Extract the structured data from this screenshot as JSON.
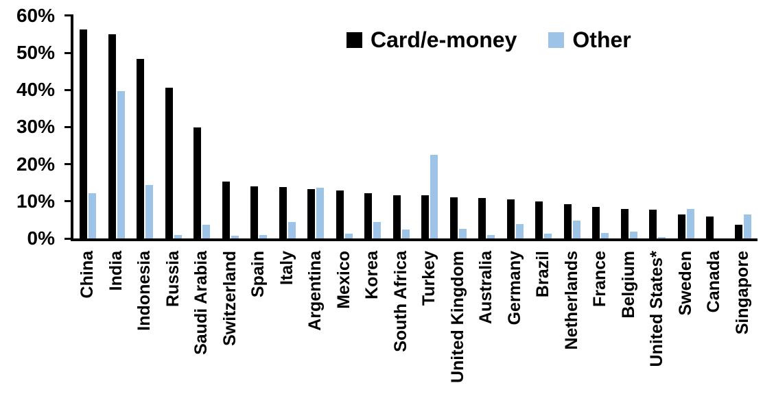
{
  "chart_data": {
    "type": "bar",
    "title": "",
    "xlabel": "",
    "ylabel": "",
    "ylim": [
      0,
      60
    ],
    "y_tick_labels": [
      "0%",
      "10%",
      "20%",
      "30%",
      "40%",
      "50%",
      "60%"
    ],
    "grid": false,
    "legend_position": "top-center",
    "categories": [
      "China",
      "India",
      "Indonesia",
      "Russia",
      "Saudi Arabia",
      "Switzerland",
      "Spain",
      "Italy",
      "Argentina",
      "Mexico",
      "Korea",
      "South Africa",
      "Turkey",
      "United Kingdom",
      "Australia",
      "Germany",
      "Brazil",
      "Netherlands",
      "France",
      "Belgium",
      "United States*",
      "Sweden",
      "Canada",
      "Singapore"
    ],
    "series": [
      {
        "name": "Card/e-money",
        "color": "#000000",
        "values": [
          56.3,
          55.0,
          48.3,
          40.5,
          29.8,
          15.4,
          14.0,
          13.9,
          13.3,
          12.9,
          12.2,
          11.6,
          11.6,
          11.1,
          10.8,
          10.6,
          9.9,
          9.2,
          8.5,
          8.0,
          7.8,
          6.4,
          5.9,
          3.7
        ]
      },
      {
        "name": "Other",
        "color": "#9DC3E6",
        "values": [
          12.2,
          39.7,
          14.3,
          1.0,
          3.7,
          0.8,
          1.0,
          4.4,
          13.7,
          1.3,
          4.4,
          2.4,
          22.5,
          2.5,
          1.0,
          3.9,
          1.2,
          4.8,
          1.5,
          1.9,
          0.4,
          8.0,
          0.0,
          6.5
        ]
      }
    ]
  },
  "legend": {
    "card_label": "Card/e-money",
    "other_label": "Other"
  },
  "colors": {
    "card": "#000000",
    "other": "#9DC3E6",
    "background": "#ffffff"
  }
}
